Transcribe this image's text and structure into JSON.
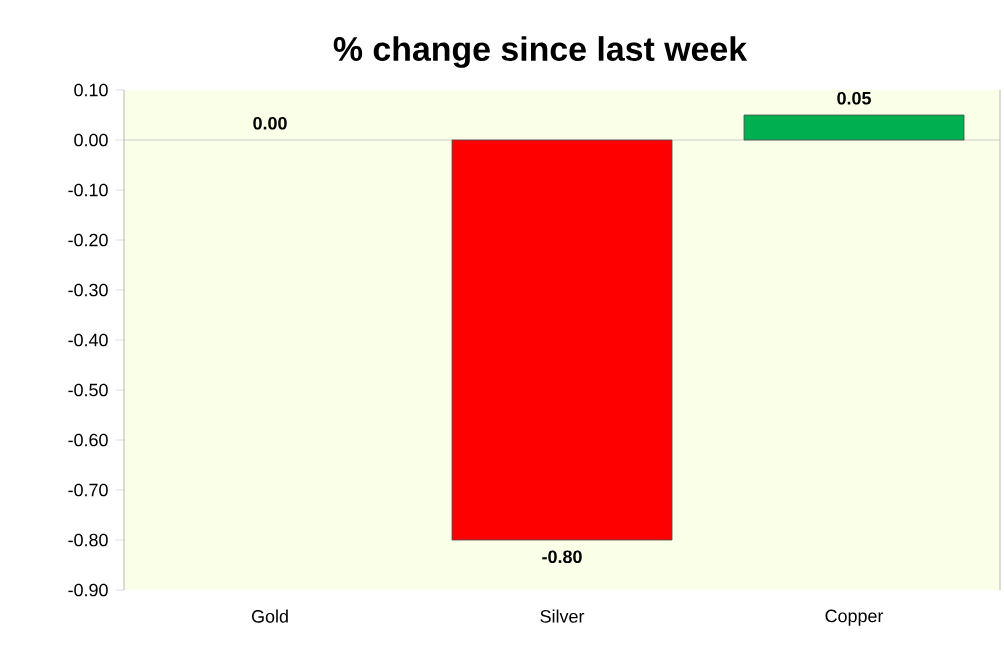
{
  "chart_data": {
    "type": "bar",
    "title": "% change since last week",
    "categories": [
      "Gold",
      "Silver",
      "Copper"
    ],
    "values": [
      0.0,
      -0.8,
      0.05
    ],
    "colors": [
      "#ffc000",
      "#ff0000",
      "#00b050"
    ],
    "value_labels": [
      "0.00",
      "-0.80",
      "0.05"
    ],
    "ylim": [
      -0.9,
      0.1
    ],
    "yticks": [
      {
        "value": 0.1,
        "label": "0.10"
      },
      {
        "value": 0.0,
        "label": "0.00"
      },
      {
        "value": -0.1,
        "label": "-0.10"
      },
      {
        "value": -0.2,
        "label": "-0.20"
      },
      {
        "value": -0.3,
        "label": "-0.30"
      },
      {
        "value": -0.4,
        "label": "-0.40"
      },
      {
        "value": -0.5,
        "label": "-0.50"
      },
      {
        "value": -0.6,
        "label": "-0.60"
      },
      {
        "value": -0.7,
        "label": "-0.70"
      },
      {
        "value": -0.8,
        "label": "-0.80"
      },
      {
        "value": -0.9,
        "label": "-0.90"
      }
    ],
    "ref_lines": [
      {
        "axis": "y",
        "value": 0,
        "color": "#bfbfbf"
      }
    ]
  }
}
